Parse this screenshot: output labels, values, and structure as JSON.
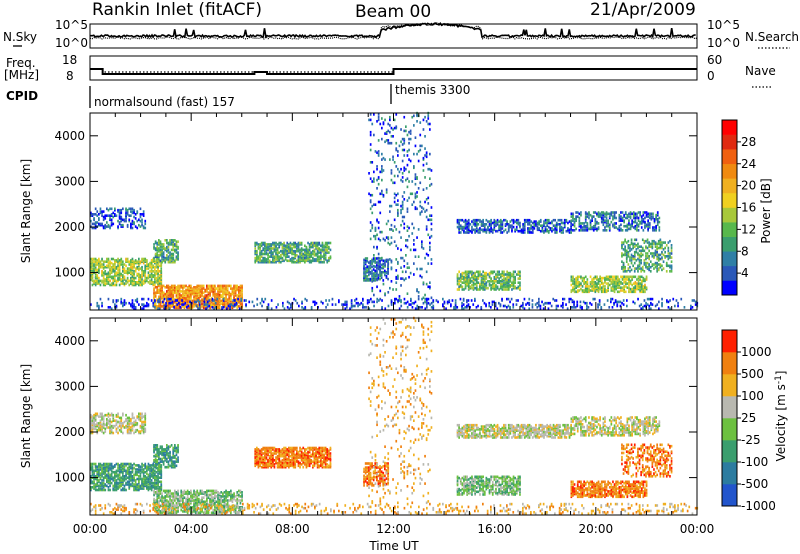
{
  "header": {
    "station": "Rankin Inlet (fitACF)",
    "beam": "Beam 00",
    "date": "21/Apr/2009"
  },
  "top_panels": {
    "nsky_label": "N.Sky",
    "nsky_ticks": [
      "10^5",
      "10^0"
    ],
    "nsearch_label": "N.Search",
    "nsearch_ticks": [
      "10^5",
      "10^0"
    ],
    "freq_label": "Freq.",
    "freq_unit": "[MHz]",
    "freq_ticks": [
      "18",
      "8"
    ],
    "nave_label": "Nave",
    "nave_ticks": [
      "60",
      "0"
    ],
    "cpid_label": "CPID",
    "cpid_segments": [
      {
        "label": "normalsound (fast) 157",
        "start_hour": 0
      },
      {
        "label": "themis 3300",
        "start_hour": 12
      }
    ]
  },
  "chart_data": [
    {
      "type": "heatmap",
      "title": "",
      "xlabel": "Time UT",
      "ylabel": "Slant Range [km]",
      "x_ticks": [
        "00:00",
        "04:00",
        "08:00",
        "12:00",
        "16:00",
        "20:00",
        "00:00"
      ],
      "x_range_hours": [
        0,
        24
      ],
      "y_ticks": [
        "1000",
        "2000",
        "3000",
        "4000"
      ],
      "y_range_km": [
        180,
        4500
      ],
      "colorbar_label": "Power [dB]",
      "colorbar_ticks": [
        "28",
        "24",
        "20",
        "16",
        "12",
        "8",
        "4"
      ],
      "colorbar_range": [
        0,
        32
      ],
      "colors": [
        "#0000ff",
        "#2a58b8",
        "#2f7fa6",
        "#3a9e6e",
        "#58b84c",
        "#a8c83a",
        "#f0d020",
        "#f0b020",
        "#f08a10",
        "#f06010",
        "#e02a10",
        "#ff0000"
      ],
      "regions": [
        {
          "t0": 0.0,
          "t1": 2.2,
          "r0": 1950,
          "r1": 2400,
          "level": 4,
          "density": 0.35
        },
        {
          "t0": 0.0,
          "t1": 2.8,
          "r0": 700,
          "r1": 1300,
          "level": 14,
          "density": 0.55
        },
        {
          "t0": 2.5,
          "t1": 3.5,
          "r0": 1200,
          "r1": 1700,
          "level": 10,
          "density": 0.55
        },
        {
          "t0": 2.5,
          "t1": 6.0,
          "r0": 200,
          "r1": 700,
          "level": 22,
          "density": 0.7
        },
        {
          "t0": 6.5,
          "t1": 9.5,
          "r0": 1200,
          "r1": 1650,
          "level": 10,
          "density": 0.6
        },
        {
          "t0": 10.8,
          "t1": 11.8,
          "r0": 800,
          "r1": 1300,
          "level": 6,
          "density": 0.45
        },
        {
          "t0": 11.0,
          "t1": 13.5,
          "r0": 300,
          "r1": 4500,
          "level": 5,
          "density": 0.08
        },
        {
          "t0": 14.5,
          "t1": 19.0,
          "r0": 1850,
          "r1": 2150,
          "level": 5,
          "density": 0.5
        },
        {
          "t0": 19.0,
          "t1": 22.5,
          "r0": 1900,
          "r1": 2300,
          "level": 6,
          "density": 0.4
        },
        {
          "t0": 14.5,
          "t1": 17.0,
          "r0": 600,
          "r1": 1000,
          "level": 12,
          "density": 0.55
        },
        {
          "t0": 19.0,
          "t1": 22.0,
          "r0": 550,
          "r1": 900,
          "level": 14,
          "density": 0.55
        },
        {
          "t0": 21.0,
          "t1": 23.0,
          "r0": 1000,
          "r1": 1700,
          "level": 10,
          "density": 0.3
        },
        {
          "t0": 0.0,
          "t1": 24.0,
          "r0": 180,
          "r1": 420,
          "level": 3,
          "density": 0.18
        }
      ]
    },
    {
      "type": "heatmap",
      "title": "",
      "xlabel": "Time UT",
      "ylabel": "Slant Range [km]",
      "x_ticks": [
        "00:00",
        "04:00",
        "08:00",
        "12:00",
        "16:00",
        "20:00",
        "00:00"
      ],
      "x_range_hours": [
        0,
        24
      ],
      "y_ticks": [
        "1000",
        "2000",
        "3000",
        "4000"
      ],
      "y_range_km": [
        180,
        4500
      ],
      "colorbar_label": "Velocity [m s^-1]",
      "colorbar_ticks": [
        "1000",
        "500",
        "100",
        "25",
        "-25",
        "-100",
        "-500",
        "-1000"
      ],
      "colors": [
        "#2255cc",
        "#2c7ca0",
        "#3a9e6e",
        "#6cc040",
        "#b8b8b0",
        "#f0b020",
        "#f08010",
        "#ff2000"
      ],
      "regions": [
        {
          "t0": 0.0,
          "t1": 2.2,
          "r0": 1950,
          "r1": 2400,
          "level": 4,
          "density": 0.45
        },
        {
          "t0": 0.0,
          "t1": 2.8,
          "r0": 700,
          "r1": 1300,
          "level": 2,
          "density": 0.6
        },
        {
          "t0": 2.5,
          "t1": 3.5,
          "r0": 1200,
          "r1": 1700,
          "level": 2,
          "density": 0.55
        },
        {
          "t0": 2.5,
          "t1": 6.0,
          "r0": 200,
          "r1": 700,
          "level": 3,
          "density": 0.6
        },
        {
          "t0": 6.5,
          "t1": 9.5,
          "r0": 1200,
          "r1": 1650,
          "level": 6,
          "density": 0.65
        },
        {
          "t0": 10.8,
          "t1": 11.8,
          "r0": 800,
          "r1": 1300,
          "level": 6,
          "density": 0.45
        },
        {
          "t0": 11.0,
          "t1": 13.5,
          "r0": 300,
          "r1": 4500,
          "level": 5,
          "density": 0.06
        },
        {
          "t0": 14.5,
          "t1": 19.0,
          "r0": 1850,
          "r1": 2150,
          "level": 4,
          "density": 0.6
        },
        {
          "t0": 19.0,
          "t1": 22.5,
          "r0": 1900,
          "r1": 2300,
          "level": 4,
          "density": 0.45
        },
        {
          "t0": 14.5,
          "t1": 17.0,
          "r0": 600,
          "r1": 1000,
          "level": 3,
          "density": 0.55
        },
        {
          "t0": 19.0,
          "t1": 22.0,
          "r0": 550,
          "r1": 900,
          "level": 6,
          "density": 0.6
        },
        {
          "t0": 21.0,
          "t1": 23.0,
          "r0": 1000,
          "r1": 1700,
          "level": 6,
          "density": 0.3
        },
        {
          "t0": 0.0,
          "t1": 24.0,
          "r0": 180,
          "r1": 420,
          "level": 5,
          "density": 0.15
        }
      ]
    }
  ]
}
